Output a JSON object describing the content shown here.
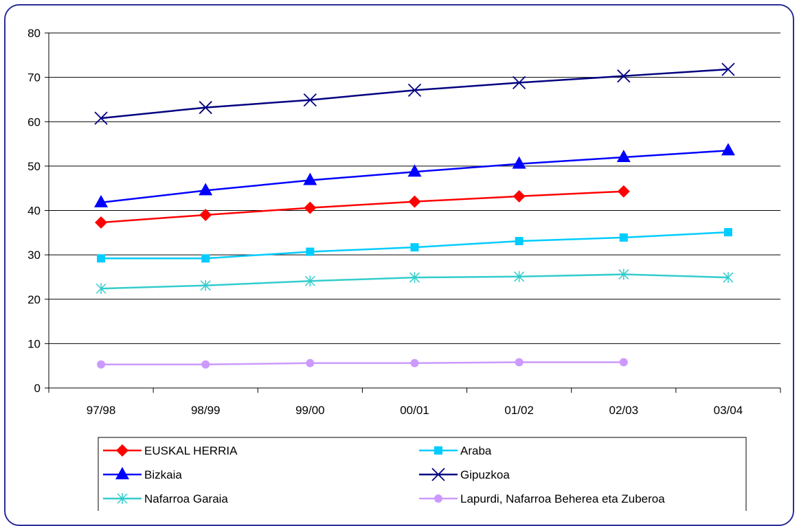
{
  "chart_data": {
    "type": "line",
    "categories": [
      "97/98",
      "98/99",
      "99/00",
      "00/01",
      "01/02",
      "02/03",
      "03/04"
    ],
    "ylim": [
      0,
      80
    ],
    "yticks": [
      0,
      10,
      20,
      30,
      40,
      50,
      60,
      70,
      80
    ],
    "grid": "horizontal",
    "legend_position": "bottom",
    "title": "",
    "xlabel": "",
    "ylabel": "",
    "series": [
      {
        "name": "EUSKAL HERRIA",
        "color": "#ff0000",
        "marker": "diamond",
        "values": [
          37.3,
          39.0,
          40.6,
          42.0,
          43.2,
          44.3,
          null
        ]
      },
      {
        "name": "Araba",
        "color": "#00ccff",
        "marker": "square",
        "values": [
          29.2,
          29.2,
          30.7,
          31.7,
          33.1,
          33.9,
          35.1
        ]
      },
      {
        "name": "Bizkaia",
        "color": "#0000ff",
        "marker": "triangle",
        "values": [
          41.8,
          44.5,
          46.8,
          48.7,
          50.5,
          52.0,
          53.5
        ]
      },
      {
        "name": "Gipuzkoa",
        "color": "#000080",
        "marker": "x",
        "values": [
          60.8,
          63.2,
          64.9,
          67.1,
          68.8,
          70.3,
          71.8
        ]
      },
      {
        "name": "Nafarroa Garaia",
        "color": "#33cccc",
        "marker": "asterisk",
        "values": [
          22.4,
          23.1,
          24.1,
          24.9,
          25.1,
          25.6,
          24.9
        ]
      },
      {
        "name": "Lapurdi, Nafarroa Beherea eta Zuberoa",
        "color": "#cc99ff",
        "marker": "circle",
        "values": [
          5.3,
          5.3,
          5.6,
          5.6,
          5.8,
          5.8,
          null
        ]
      }
    ]
  }
}
